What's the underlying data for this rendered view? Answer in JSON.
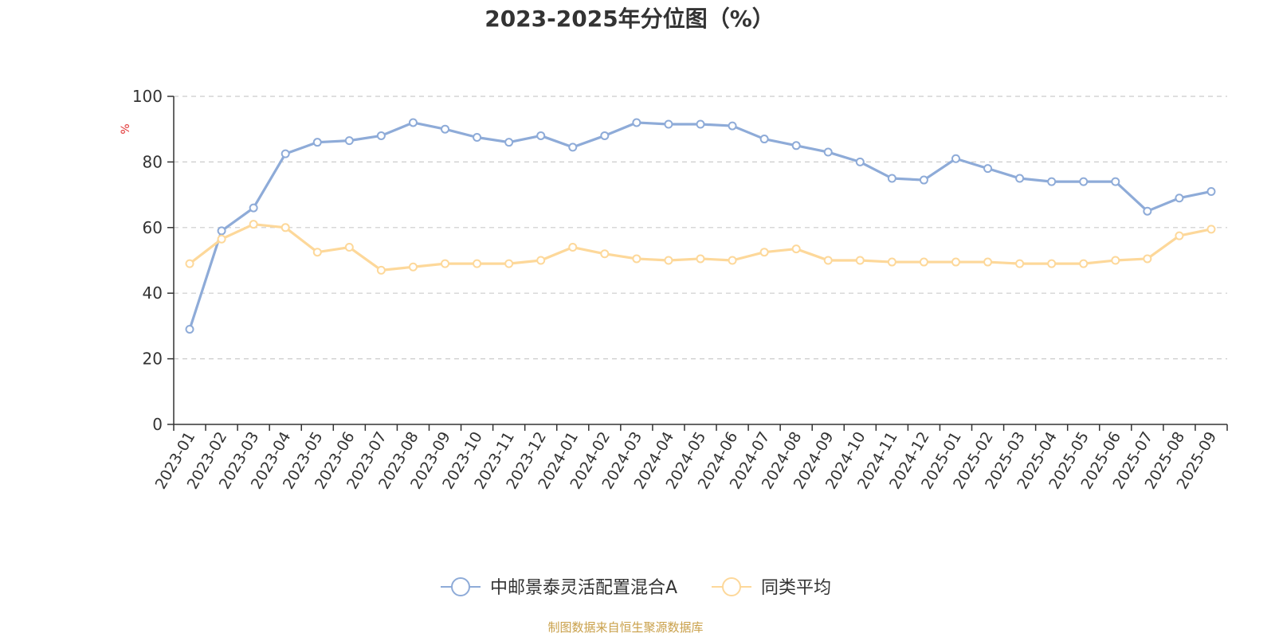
{
  "chart_data": {
    "type": "line",
    "title": "2023-2025年分位图（%）",
    "ylabel": "%",
    "ylim": [
      0,
      100
    ],
    "yticks": [
      0,
      20,
      40,
      60,
      80,
      100
    ],
    "grid": true,
    "legend_position": "bottom-center",
    "categories": [
      "2023-01",
      "2023-02",
      "2023-03",
      "2023-04",
      "2023-05",
      "2023-06",
      "2023-07",
      "2023-08",
      "2023-09",
      "2023-10",
      "2023-11",
      "2023-12",
      "2024-01",
      "2024-02",
      "2024-03",
      "2024-04",
      "2024-05",
      "2024-06",
      "2024-07",
      "2024-08",
      "2024-09",
      "2024-10",
      "2024-11",
      "2024-12",
      "2025-01",
      "2025-02",
      "2025-03",
      "2025-04",
      "2025-05",
      "2025-06",
      "2025-07",
      "2025-08",
      "2025-09"
    ],
    "series": [
      {
        "name": "中邮景泰灵活配置混合A",
        "color": "#8eabd8",
        "values": [
          29,
          59,
          66,
          82.5,
          86,
          86.5,
          88,
          92,
          90,
          87.5,
          86,
          88,
          84.5,
          88,
          92,
          91.5,
          91.5,
          91,
          87,
          85,
          83,
          80,
          75,
          74.5,
          81,
          78,
          75,
          74,
          74,
          74,
          65,
          69,
          71
        ]
      },
      {
        "name": "同类平均",
        "color": "#fdd89a",
        "values": [
          49,
          56.5,
          61,
          60,
          52.5,
          54,
          47,
          48,
          49,
          49,
          49,
          50,
          54,
          52,
          50.5,
          50,
          50.5,
          50,
          52.5,
          53.5,
          50,
          50,
          49.5,
          49.5,
          49.5,
          49.5,
          49,
          49,
          49,
          50,
          50.5,
          57.5,
          59.5
        ]
      }
    ]
  },
  "source": {
    "text": "制图数据来自恒生聚源数据库",
    "color": "#c9a04a"
  },
  "colors": {
    "axis": "#333333",
    "grid": "#cccccc",
    "ylabel": "#e03030"
  }
}
